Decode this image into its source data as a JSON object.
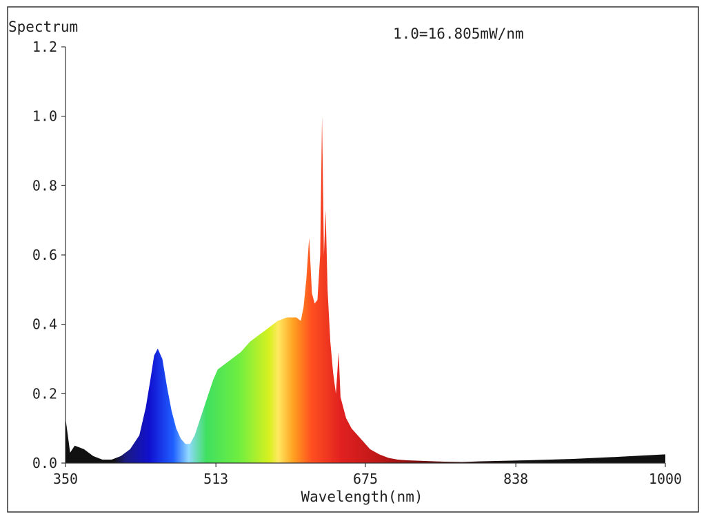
{
  "chart_data": {
    "type": "area",
    "ylabel": "Spectrum",
    "annotation": "1.0=16.805mW/nm",
    "xlabel": "Wavelength(nm)",
    "xlim": [
      350,
      1000
    ],
    "ylim": [
      0,
      1.2
    ],
    "x_ticks": [
      "350",
      "513",
      "675",
      "838",
      "1000"
    ],
    "y_ticks": [
      "0.0",
      "0.2",
      "0.4",
      "0.6",
      "0.8",
      "1.0",
      "1.2"
    ],
    "grid": false,
    "fill": "visible-spectrum color gradient",
    "series": [
      {
        "x": [
          350,
          355,
          360,
          370,
          380,
          390,
          400,
          410,
          420,
          430,
          437,
          442,
          446,
          450,
          455,
          460,
          465,
          470,
          475,
          480,
          485,
          490,
          495,
          500,
          505,
          510,
          515,
          520,
          530,
          540,
          550,
          560,
          570,
          580,
          590,
          595,
          600,
          605,
          608,
          611,
          614,
          617,
          620,
          623,
          626,
          628,
          630,
          632,
          634,
          637,
          640,
          643,
          646,
          648,
          651,
          654,
          660,
          670,
          680,
          690,
          700,
          710,
          720,
          740,
          760,
          780,
          800,
          850,
          900,
          950,
          1000
        ],
        "y": [
          0.13,
          0.03,
          0.05,
          0.04,
          0.02,
          0.01,
          0.01,
          0.02,
          0.04,
          0.08,
          0.16,
          0.24,
          0.31,
          0.33,
          0.3,
          0.22,
          0.15,
          0.1,
          0.07,
          0.055,
          0.055,
          0.08,
          0.12,
          0.16,
          0.2,
          0.24,
          0.27,
          0.28,
          0.3,
          0.32,
          0.35,
          0.37,
          0.39,
          0.41,
          0.42,
          0.42,
          0.42,
          0.41,
          0.45,
          0.53,
          0.65,
          0.49,
          0.46,
          0.47,
          0.6,
          1.0,
          0.6,
          0.73,
          0.5,
          0.35,
          0.26,
          0.2,
          0.32,
          0.19,
          0.16,
          0.13,
          0.1,
          0.07,
          0.04,
          0.025,
          0.015,
          0.01,
          0.008,
          0.006,
          0.004,
          0.003,
          0.005,
          0.008,
          0.012,
          0.018,
          0.025
        ]
      }
    ]
  }
}
